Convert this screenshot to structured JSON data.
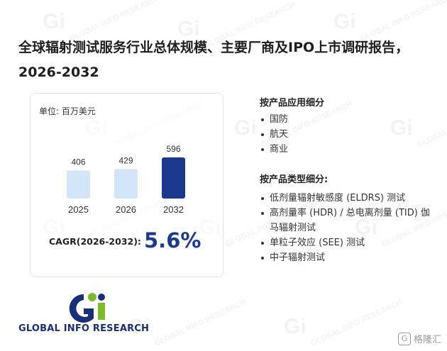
{
  "title": "全球辐射测试服务行业总体规模、主要厂商及IPO上市调研报告，2026-2032",
  "chart_data": {
    "type": "bar",
    "unit_label": "单位: 百万美元",
    "categories": [
      "2025",
      "2026",
      "2032"
    ],
    "values": [
      406,
      429,
      596
    ],
    "colors": [
      "#d3e6f9",
      "#d3e6f9",
      "#1a3a8f"
    ],
    "cagr_label": "CAGR(2026-2032):",
    "cagr_value": "5.6%"
  },
  "application": {
    "heading": "按产品应用细分",
    "items": [
      "国防",
      "航天",
      "商业"
    ]
  },
  "product_type": {
    "heading": "按产品类型细分:",
    "items": [
      "低剂量辐射敏感度 (ELDRS) 测试",
      "高剂量率 (HDR) / 总电离剂量 (TID) 伽马辐射测试",
      "单粒子效应 (SEE) 测试",
      "中子辐射测试"
    ]
  },
  "logo": {
    "text": "GLOBAL INFO RESEARCH",
    "colors": {
      "navy": "#1a2f7a",
      "green": "#7dbb2c"
    }
  },
  "watermark": {
    "text": "GLOBAL INFO RESEARCH"
  },
  "badge": {
    "text": "格隆汇"
  }
}
